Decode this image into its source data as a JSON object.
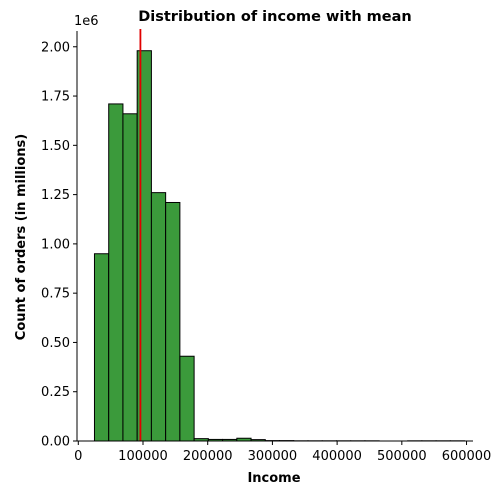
{
  "chart_data": {
    "type": "bar",
    "title": "Distribution of income with mean",
    "xlabel": "Income",
    "ylabel": "Count of orders (in millions)",
    "y_offset_label": "1e6",
    "xlim": [
      -2000,
      610000
    ],
    "ylim": [
      0,
      2.08
    ],
    "x_ticks": [
      0,
      100000,
      200000,
      300000,
      400000,
      500000,
      600000
    ],
    "x_tick_labels": [
      "0",
      "100000",
      "200000",
      "300000",
      "400000",
      "500000",
      "600000"
    ],
    "y_ticks": [
      0,
      0.25,
      0.5,
      0.75,
      1.0,
      1.25,
      1.5,
      1.75,
      2.0
    ],
    "y_tick_labels": [
      "0.00",
      "0.25",
      "0.50",
      "0.75",
      "1.00",
      "1.25",
      "1.50",
      "1.75",
      "2.00"
    ],
    "bins": [
      {
        "x0": 25000,
        "x1": 47000,
        "value": 0.95
      },
      {
        "x0": 47000,
        "x1": 69000,
        "value": 1.71
      },
      {
        "x0": 69000,
        "x1": 91000,
        "value": 1.66
      },
      {
        "x0": 91000,
        "x1": 113000,
        "value": 1.98
      },
      {
        "x0": 113000,
        "x1": 135000,
        "value": 1.26
      },
      {
        "x0": 135000,
        "x1": 157000,
        "value": 1.21
      },
      {
        "x0": 157000,
        "x1": 179000,
        "value": 0.43
      },
      {
        "x0": 179000,
        "x1": 201000,
        "value": 0.012
      },
      {
        "x0": 201000,
        "x1": 223000,
        "value": 0.008
      },
      {
        "x0": 223000,
        "x1": 245000,
        "value": 0.008
      },
      {
        "x0": 245000,
        "x1": 267000,
        "value": 0.014
      },
      {
        "x0": 267000,
        "x1": 289000,
        "value": 0.007
      },
      {
        "x0": 289000,
        "x1": 311000,
        "value": 0.002
      },
      {
        "x0": 311000,
        "x1": 333000,
        "value": 0.002
      },
      {
        "x0": 333000,
        "x1": 355000,
        "value": 0.001
      },
      {
        "x0": 355000,
        "x1": 377000,
        "value": 0.001
      },
      {
        "x0": 377000,
        "x1": 399000,
        "value": 0.001
      },
      {
        "x0": 399000,
        "x1": 421000,
        "value": 0.001
      },
      {
        "x0": 421000,
        "x1": 443000,
        "value": 0.001
      },
      {
        "x0": 443000,
        "x1": 465000,
        "value": 0.001
      },
      {
        "x0": 465000,
        "x1": 487000,
        "value": 0.0
      },
      {
        "x0": 487000,
        "x1": 509000,
        "value": 0.0
      },
      {
        "x0": 509000,
        "x1": 531000,
        "value": 0.001
      },
      {
        "x0": 531000,
        "x1": 553000,
        "value": 0.001
      },
      {
        "x0": 553000,
        "x1": 575000,
        "value": 0.001
      },
      {
        "x0": 575000,
        "x1": 597000,
        "value": 0.001
      }
    ],
    "mean": 96000,
    "bar_color": "#3b9a3b",
    "bar_edge_color": "#000000",
    "mean_line_color": "#e00000",
    "grid": false,
    "legend": "none"
  }
}
